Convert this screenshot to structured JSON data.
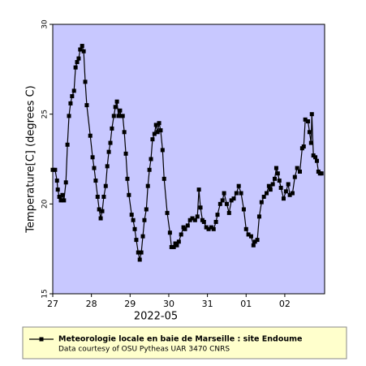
{
  "chart_data": {
    "type": "line",
    "xlabel": "2022-05",
    "ylabel": "Temperature[C] (degrees C)",
    "xlim": [
      0,
      7.03
    ],
    "xticks": [
      {
        "value": 0,
        "label": "27"
      },
      {
        "value": 1,
        "label": "28"
      },
      {
        "value": 2,
        "label": "29"
      },
      {
        "value": 3,
        "label": "30"
      },
      {
        "value": 4,
        "label": "31"
      },
      {
        "value": 5,
        "label": "01"
      },
      {
        "value": 6,
        "label": "02"
      }
    ],
    "ylim": [
      15,
      30
    ],
    "yticks": [
      15,
      20,
      25,
      30
    ],
    "background": "#c8c8ff",
    "legend_position": "bottom",
    "legend_color": "#ffffcc",
    "credit": "Data courtesy of OSU Pytheas UAR 3470 CNRS",
    "x": [
      0,
      0.06,
      0.11,
      0.13,
      0.17,
      0.21,
      0.25,
      0.29,
      0.34,
      0.38,
      0.42,
      0.46,
      0.5,
      0.55,
      0.59,
      0.63,
      0.67,
      0.71,
      0.76,
      0.8,
      0.84,
      0.88,
      0.97,
      1.03,
      1.07,
      1.11,
      1.16,
      1.2,
      1.24,
      1.28,
      1.32,
      1.37,
      1.41,
      1.45,
      1.49,
      1.53,
      1.58,
      1.62,
      1.66,
      1.7,
      1.74,
      1.76,
      1.81,
      1.85,
      1.89,
      1.93,
      1.97,
      2.04,
      2.08,
      2.12,
      2.16,
      2.21,
      2.25,
      2.29,
      2.33,
      2.37,
      2.42,
      2.46,
      2.5,
      2.54,
      2.58,
      2.63,
      2.67,
      2.71,
      2.75,
      2.79,
      2.84,
      2.88,
      2.96,
      3.03,
      3.07,
      3.13,
      3.17,
      3.21,
      3.26,
      3.32,
      3.38,
      3.42,
      3.49,
      3.55,
      3.61,
      3.68,
      3.74,
      3.78,
      3.82,
      3.87,
      3.91,
      3.97,
      4.03,
      4.1,
      4.16,
      4.22,
      4.26,
      4.33,
      4.39,
      4.43,
      4.5,
      4.56,
      4.62,
      4.68,
      4.75,
      4.81,
      4.87,
      4.94,
      5.0,
      5.06,
      5.13,
      5.19,
      5.23,
      5.29,
      5.34,
      5.4,
      5.46,
      5.53,
      5.59,
      5.63,
      5.69,
      5.74,
      5.78,
      5.82,
      5.86,
      5.9,
      5.97,
      6.03,
      6.09,
      6.13,
      6.2,
      6.26,
      6.32,
      6.39,
      6.45,
      6.49,
      6.53,
      6.6,
      6.64,
      6.68,
      6.7,
      6.74,
      6.79,
      6.83,
      6.87,
      6.91,
      6.95
    ],
    "series": [
      {
        "name": "Meteorologie locale en baie de Marseille : site Endoume",
        "color": "#000000",
        "values": [
          21.9,
          21.9,
          21.3,
          20.8,
          20.4,
          20.2,
          20.5,
          20.2,
          21.2,
          23.3,
          24.9,
          25.6,
          26.0,
          26.3,
          27.6,
          27.9,
          28.1,
          28.6,
          28.8,
          28.5,
          26.8,
          25.5,
          23.8,
          22.6,
          22.0,
          21.3,
          20.4,
          19.7,
          19.2,
          19.6,
          20.4,
          21.0,
          22.1,
          22.9,
          23.4,
          24.2,
          24.9,
          25.4,
          25.7,
          24.9,
          25.2,
          24.9,
          24.9,
          24.0,
          22.8,
          21.4,
          20.5,
          19.4,
          19.1,
          18.6,
          18.0,
          17.3,
          16.9,
          17.3,
          18.2,
          19.1,
          19.7,
          21.0,
          21.9,
          22.5,
          23.6,
          23.9,
          24.4,
          24.0,
          24.5,
          24.1,
          23.0,
          21.4,
          19.5,
          18.4,
          17.6,
          17.6,
          17.8,
          17.7,
          17.9,
          18.3,
          18.7,
          18.6,
          18.8,
          19.1,
          19.2,
          19.1,
          19.3,
          20.8,
          19.8,
          19.1,
          19.0,
          18.7,
          18.6,
          18.7,
          18.6,
          19.0,
          19.4,
          20.0,
          20.2,
          20.6,
          20.0,
          19.5,
          20.2,
          20.3,
          20.6,
          21.0,
          20.6,
          19.7,
          18.6,
          18.3,
          18.2,
          17.7,
          17.9,
          18.0,
          19.3,
          20.1,
          20.4,
          20.6,
          21.0,
          20.8,
          21.1,
          21.4,
          22.0,
          21.7,
          21.3,
          20.9,
          20.3,
          20.7,
          21.1,
          20.5,
          20.6,
          21.5,
          22.0,
          21.8,
          23.1,
          23.2,
          24.7,
          24.6,
          24.0,
          23.4,
          25.0,
          22.7,
          22.6,
          22.4,
          21.8,
          21.7,
          21.7
        ]
      }
    ]
  }
}
